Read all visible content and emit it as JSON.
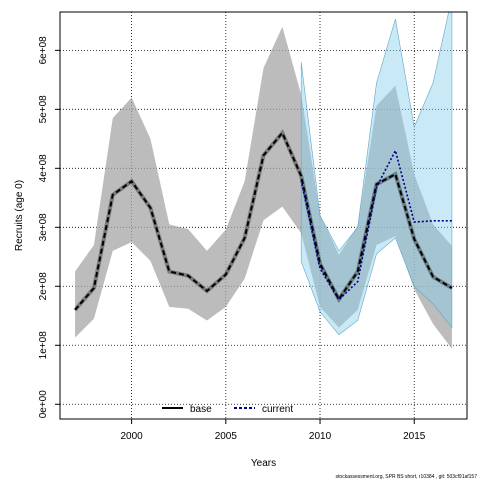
{
  "chart_data": {
    "type": "line",
    "xlabel": "Years",
    "ylabel": "Recruits (age 0)",
    "xlim": [
      1996.2,
      2017.8
    ],
    "ylim": [
      -25000000.0,
      665000000.0
    ],
    "x_ticks": [
      2000,
      2005,
      2010,
      2015
    ],
    "x_tick_labels": [
      "2000",
      "2005",
      "2010",
      "2015"
    ],
    "y_ticks": [
      0,
      100000000,
      200000000,
      300000000,
      400000000,
      500000000,
      600000000
    ],
    "y_tick_labels": [
      "0e+00",
      "1e+08",
      "2e+08",
      "3e+08",
      "4e+08",
      "5e+08",
      "6e+08"
    ],
    "grid": true,
    "legend_position": "bottom",
    "series": [
      {
        "name": "base",
        "color": "#000000",
        "line_style": "solid",
        "band_color": "#a6a6a6",
        "x": [
          1997,
          1998,
          1999,
          2000,
          2001,
          2002,
          2003,
          2004,
          2005,
          2006,
          2007,
          2008,
          2009,
          2010,
          2011,
          2012,
          2013,
          2014,
          2015,
          2016,
          2017
        ],
        "y": [
          160000000.0,
          197000000.0,
          355000000.0,
          378000000.0,
          333000000.0,
          225000000.0,
          218000000.0,
          192000000.0,
          220000000.0,
          282000000.0,
          422000000.0,
          460000000.0,
          387000000.0,
          238000000.0,
          178000000.0,
          225000000.0,
          373000000.0,
          390000000.0,
          280000000.0,
          216000000.0,
          197000000.0
        ],
        "lower": [
          113000000.0,
          145000000.0,
          260000000.0,
          275000000.0,
          243000000.0,
          165000000.0,
          162000000.0,
          142000000.0,
          165000000.0,
          213000000.0,
          312000000.0,
          335000000.0,
          290000000.0,
          165000000.0,
          130000000.0,
          160000000.0,
          270000000.0,
          285000000.0,
          195000000.0,
          136000000.0,
          94000000.0
        ],
        "upper": [
          225000000.0,
          270000000.0,
          485000000.0,
          520000000.0,
          450000000.0,
          305000000.0,
          297000000.0,
          260000000.0,
          296000000.0,
          378000000.0,
          570000000.0,
          640000000.0,
          525000000.0,
          322000000.0,
          253000000.0,
          303000000.0,
          506000000.0,
          540000000.0,
          390000000.0,
          305000000.0,
          268000000.0
        ]
      },
      {
        "name": "current",
        "color": "#00008b",
        "line_style": "dashed",
        "band_color": "#87ceeb",
        "x": [
          2009,
          2010,
          2011,
          2012,
          2013,
          2014,
          2015,
          2016,
          2017
        ],
        "y": [
          380000000.0,
          230000000.0,
          177000000.0,
          208000000.0,
          368000000.0,
          430000000.0,
          309000000.0,
          311000000.0,
          311000000.0
        ],
        "lower": [
          242000000.0,
          157000000.0,
          118000000.0,
          142000000.0,
          255000000.0,
          282000000.0,
          200000000.0,
          170000000.0,
          130000000.0
        ],
        "upper": [
          580000000.0,
          320000000.0,
          260000000.0,
          300000000.0,
          545000000.0,
          653000000.0,
          470000000.0,
          545000000.0,
          690000000.0
        ]
      }
    ]
  },
  "footer_text": "stockassessment.org, SPR BS short, r10384 , git: 503cf91af157"
}
